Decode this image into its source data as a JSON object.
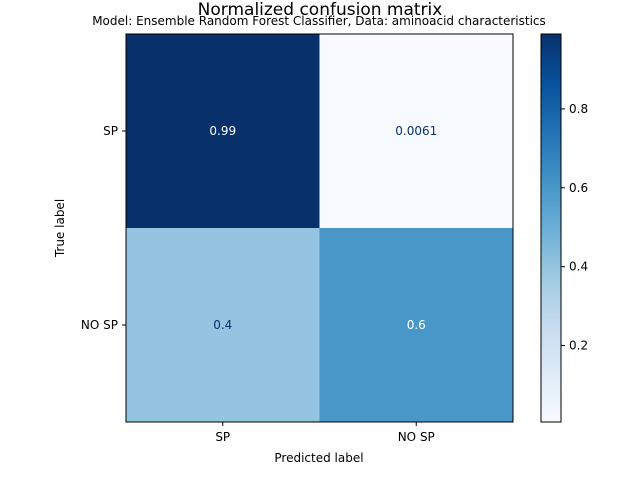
{
  "chart_data": {
    "type": "heatmap",
    "title": "Normalized confusion matrix",
    "subtitle": "Model: Ensemble Random Forest Classifier, Data: aminoacid characteristics",
    "xlabel": "Predicted label",
    "ylabel": "True label",
    "row_labels": [
      "SP",
      "NO SP"
    ],
    "col_labels": [
      "SP",
      "NO SP"
    ],
    "values": [
      [
        0.99,
        0.0061
      ],
      [
        0.4,
        0.6
      ]
    ],
    "cell_labels": [
      [
        "0.99",
        "0.0061"
      ],
      [
        "0.4",
        "0.6"
      ]
    ],
    "colormap": "Blues",
    "colorbar": {
      "range": [
        0.0061,
        0.99
      ],
      "ticks": [
        0.2,
        0.4,
        0.6,
        0.8
      ],
      "tick_labels": [
        "0.2",
        "0.4",
        "0.6",
        "0.8"
      ]
    },
    "grid": false
  }
}
